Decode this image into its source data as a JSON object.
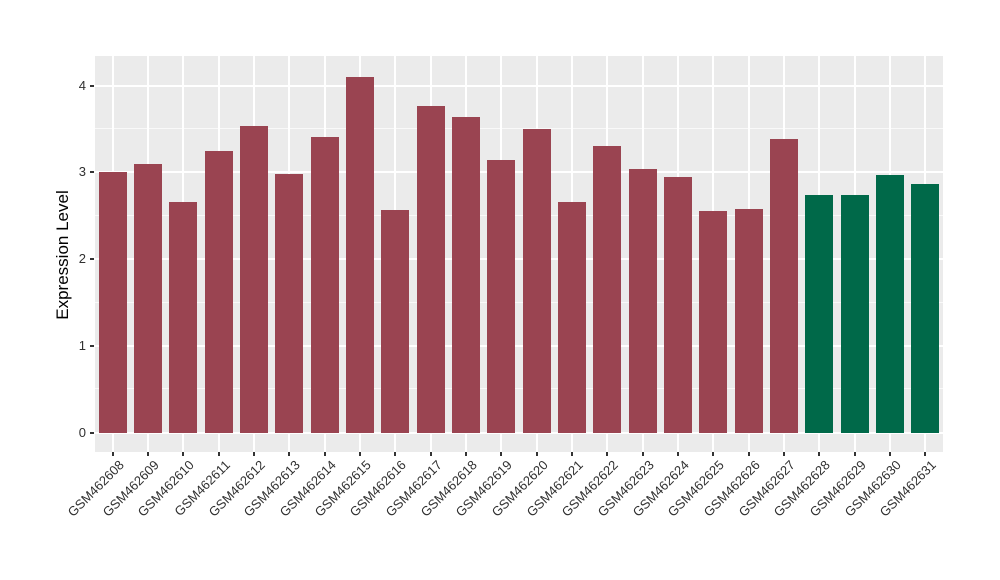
{
  "chart_data": {
    "type": "bar",
    "title": "",
    "ylabel": "Expression Level",
    "xlabel": "",
    "categories": [
      "GSM462608",
      "GSM462609",
      "GSM462610",
      "GSM462611",
      "GSM462612",
      "GSM462613",
      "GSM462614",
      "GSM462615",
      "GSM462616",
      "GSM462617",
      "GSM462618",
      "GSM462619",
      "GSM462620",
      "GSM462621",
      "GSM462622",
      "GSM462623",
      "GSM462624",
      "GSM462625",
      "GSM462626",
      "GSM462627",
      "GSM462628",
      "GSM462629",
      "GSM462630",
      "GSM462631"
    ],
    "values": [
      3.0,
      3.1,
      2.66,
      3.25,
      3.53,
      2.98,
      3.41,
      4.1,
      2.57,
      3.76,
      3.64,
      3.14,
      3.5,
      2.66,
      3.3,
      3.04,
      2.95,
      2.56,
      2.58,
      3.39,
      2.74,
      2.74,
      2.97,
      2.87
    ],
    "bar_groups": [
      "group1",
      "group1",
      "group1",
      "group1",
      "group1",
      "group1",
      "group1",
      "group1",
      "group1",
      "group1",
      "group1",
      "group1",
      "group1",
      "group1",
      "group1",
      "group1",
      "group1",
      "group1",
      "group1",
      "group1",
      "group2",
      "group2",
      "group2",
      "group2"
    ],
    "group_colors": {
      "group1": "#9A4451",
      "group2": "#006949"
    },
    "yticks": [
      0,
      1,
      2,
      3,
      4
    ],
    "minor_gridlines": [
      0.5,
      1.5,
      2.5,
      3.5
    ],
    "ylim_display": [
      -0.22,
      4.34
    ],
    "legend_position": "none",
    "grid": "on",
    "panel_background": "#EBEBEB",
    "gridline_color": "#FFFFFF",
    "axis_text_color": "#303030"
  }
}
